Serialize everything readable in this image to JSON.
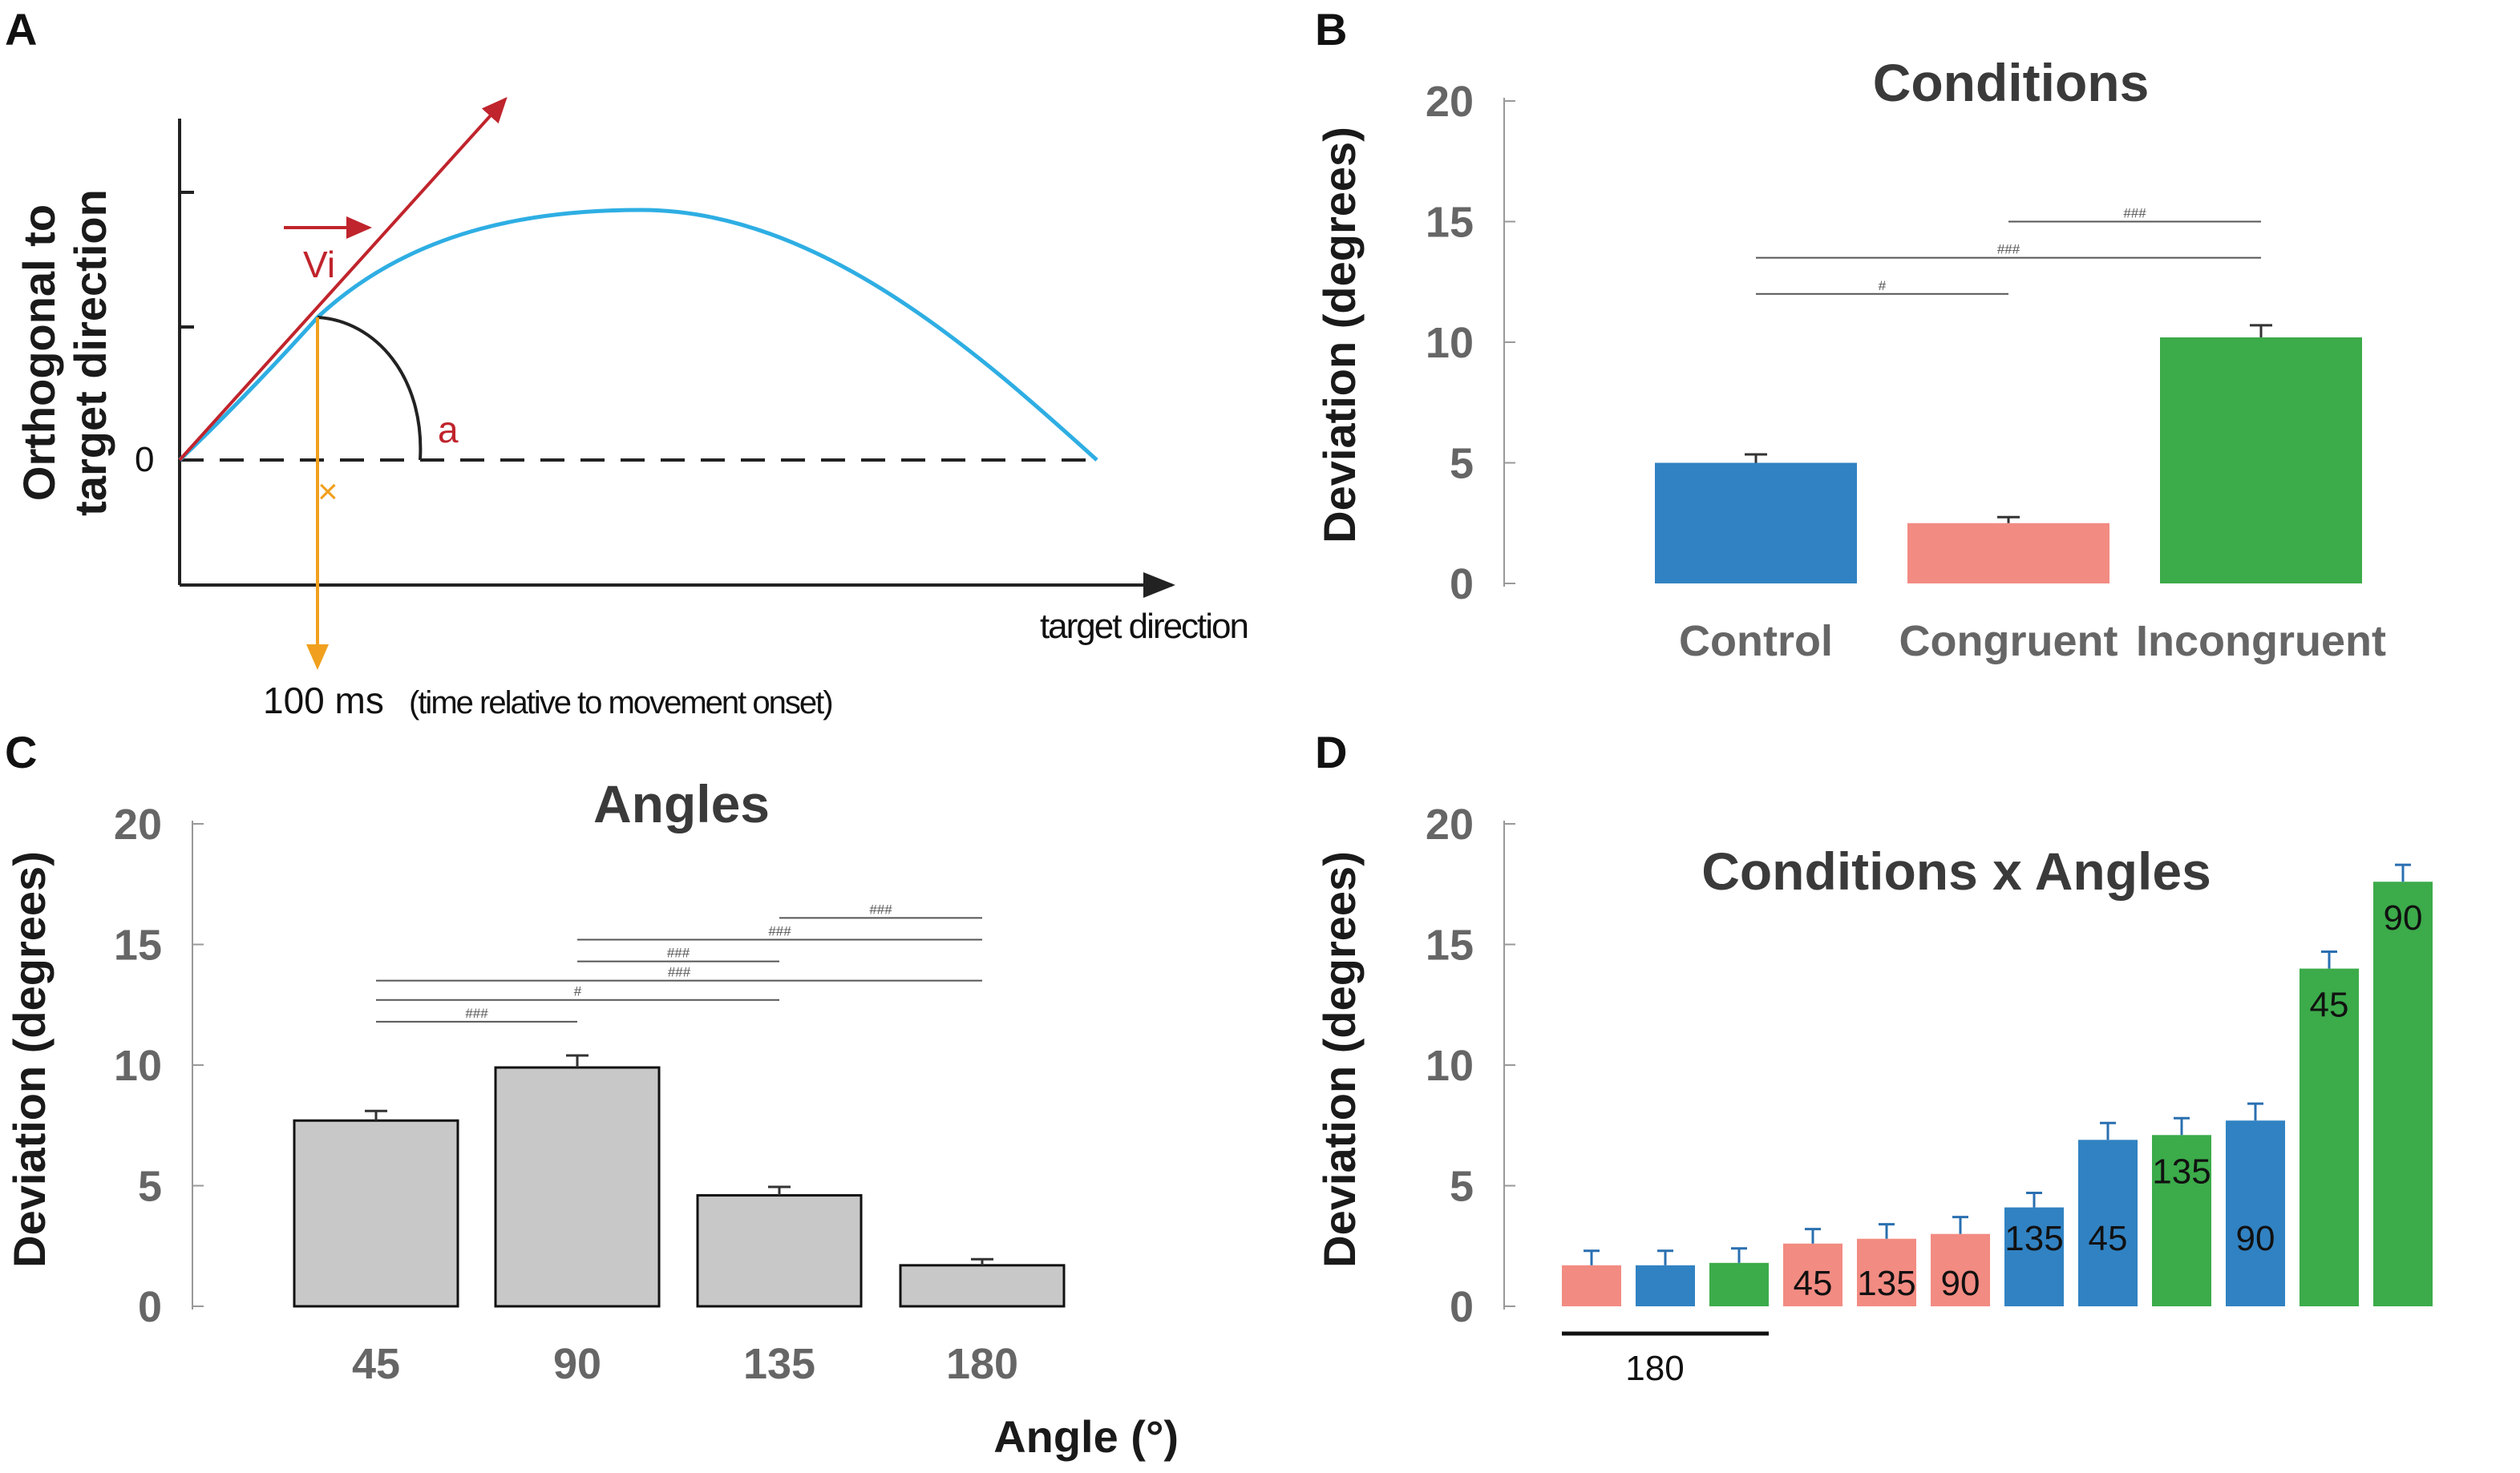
{
  "panels": {
    "A": {
      "letter": "A",
      "ylabel_line1": "Orthogonal to",
      "ylabel_line2": "target direction",
      "zero_label": "0",
      "xlabel": "target direction",
      "vector_label": "Vi",
      "angle_label": "a",
      "cross_label": "×",
      "time_label": "100 ms",
      "time_note": "(time relative to movement onset)",
      "colors": {
        "trajectory": "#2eaee3",
        "vector": "#c0242c",
        "time": "#f0a01e",
        "axis": "#222222"
      }
    },
    "B": {
      "letter": "B"
    },
    "C": {
      "letter": "C"
    },
    "D": {
      "letter": "D"
    }
  },
  "chart_data": [
    {
      "id": "B",
      "type": "bar",
      "title": "Conditions",
      "ylabel": "Deviation (degrees)",
      "xlabel": "",
      "ylim": [
        0,
        20
      ],
      "yticks": [
        0,
        5,
        10,
        15,
        20
      ],
      "categories": [
        "Control",
        "Congruent",
        "Incongruent"
      ],
      "values": [
        5.0,
        2.5,
        10.2
      ],
      "errors": [
        0.35,
        0.25,
        0.5
      ],
      "colors": [
        "#3182c2",
        "#f28b82",
        "#3cab4a"
      ],
      "significance": [
        {
          "from": 0,
          "to": 1,
          "y": 12.0,
          "label": "#"
        },
        {
          "from": 0,
          "to": 2,
          "y": 13.5,
          "label": "###"
        },
        {
          "from": 1,
          "to": 2,
          "y": 15.0,
          "label": "###"
        }
      ]
    },
    {
      "id": "C",
      "type": "bar",
      "title": "Angles",
      "ylabel": "Deviation (degrees)",
      "xlabel": "Angle (°)",
      "ylim": [
        0,
        20
      ],
      "yticks": [
        0,
        5,
        10,
        15,
        20
      ],
      "categories": [
        "45",
        "90",
        "135",
        "180"
      ],
      "values": [
        7.7,
        9.9,
        4.6,
        1.7
      ],
      "errors": [
        0.4,
        0.5,
        0.35,
        0.25
      ],
      "colors": [
        "#c8c8c8",
        "#c8c8c8",
        "#c8c8c8",
        "#c8c8c8"
      ],
      "significance": [
        {
          "from": 0,
          "to": 1,
          "y": 11.8,
          "label": "###"
        },
        {
          "from": 0,
          "to": 2,
          "y": 12.7,
          "label": "#"
        },
        {
          "from": 0,
          "to": 3,
          "y": 13.5,
          "label": "###"
        },
        {
          "from": 1,
          "to": 2,
          "y": 14.3,
          "label": "###"
        },
        {
          "from": 1,
          "to": 3,
          "y": 15.2,
          "label": "###"
        },
        {
          "from": 2,
          "to": 3,
          "y": 16.1,
          "label": "###"
        }
      ]
    },
    {
      "id": "D",
      "type": "bar",
      "title": "Conditions x Angles",
      "ylabel": "Deviation (degrees)",
      "xlabel": "",
      "ylim": [
        0,
        20
      ],
      "yticks": [
        0,
        5,
        10,
        15,
        20
      ],
      "group_label": "180",
      "bars": [
        {
          "condition": "Congruent",
          "angle": "180",
          "value": 1.7,
          "error": 0.6,
          "label": ""
        },
        {
          "condition": "Control",
          "angle": "180",
          "value": 1.7,
          "error": 0.6,
          "label": ""
        },
        {
          "condition": "Incongruent",
          "angle": "180",
          "value": 1.8,
          "error": 0.6,
          "label": ""
        },
        {
          "condition": "Congruent",
          "angle": "45",
          "value": 2.6,
          "error": 0.6,
          "label": "45"
        },
        {
          "condition": "Congruent",
          "angle": "135",
          "value": 2.8,
          "error": 0.6,
          "label": "135"
        },
        {
          "condition": "Congruent",
          "angle": "90",
          "value": 3.0,
          "error": 0.7,
          "label": "90"
        },
        {
          "condition": "Control",
          "angle": "135",
          "value": 4.1,
          "error": 0.6,
          "label": "135"
        },
        {
          "condition": "Control",
          "angle": "45",
          "value": 6.9,
          "error": 0.7,
          "label": "45"
        },
        {
          "condition": "Incongruent",
          "angle": "135",
          "value": 7.1,
          "error": 0.7,
          "label": "135"
        },
        {
          "condition": "Control",
          "angle": "90",
          "value": 7.7,
          "error": 0.7,
          "label": "90"
        },
        {
          "condition": "Incongruent",
          "angle": "45",
          "value": 14.0,
          "error": 0.7,
          "label": "45"
        },
        {
          "condition": "Incongruent",
          "angle": "90",
          "value": 17.6,
          "error": 0.7,
          "label": "90"
        }
      ],
      "condition_colors": {
        "Control": "#3182c2",
        "Congruent": "#f28b82",
        "Incongruent": "#3cab4a"
      }
    }
  ]
}
